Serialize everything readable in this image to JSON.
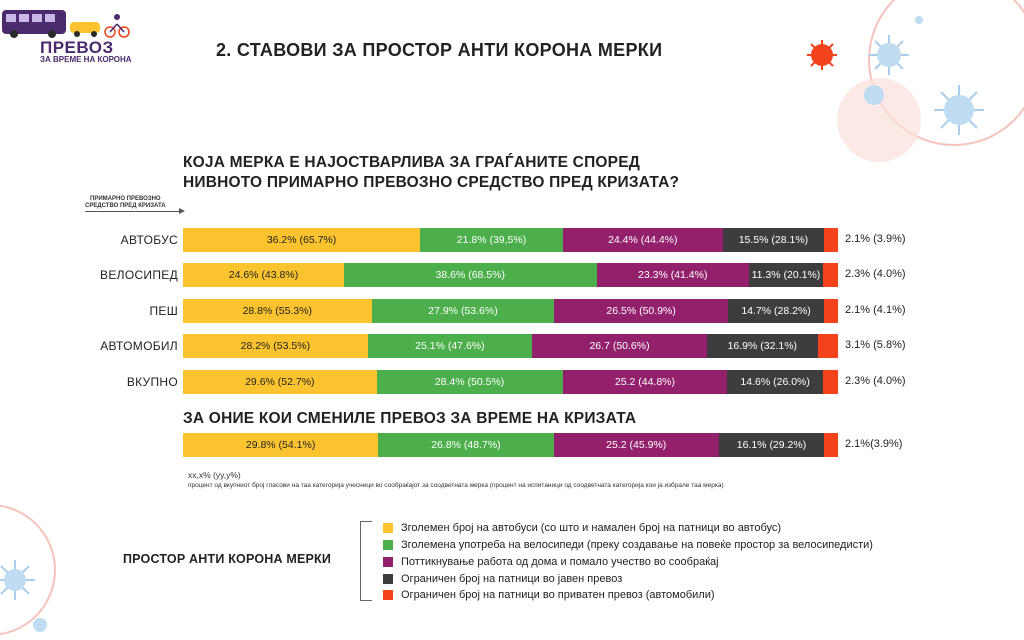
{
  "logo": {
    "title": "ПРЕВОЗ",
    "subtitle": "ЗА ВРЕМЕ НА КОРОНА"
  },
  "header": {
    "title": "2. СТАВОВИ ЗА ПРОСТОР АНТИ КОРОНА МЕРКИ"
  },
  "question": {
    "line1": "КОЈА МЕРКА Е НАЈОСТВАРЛИВА ЗА ГРАЃАНИТЕ СПОРЕД",
    "line2": "НИВНОТО ПРИМАРНО ПРЕВОЗНО СРЕДСТВО ПРЕД КРИЗАТА?"
  },
  "axis_heading": {
    "line1": "ПРИМАРНО ПРЕВОЗНО",
    "line2": "СРЕДСТВО ПРЕД КРИЗАТА"
  },
  "subtitle": "ЗА ОНИЕ КОИ СМЕНИЛЕ ПРЕВОЗ ЗА ВРЕМЕ НА КРИЗАТА",
  "note": {
    "format": "xx,x% (yy,y%)",
    "description": "процент од вкупниот број гласови на таа категорија учесници во сообраќајот за соодветната мерка  (процент на испитаници од соодветната категорија кои ја избрале таа мерка)"
  },
  "colors": [
    "#fbc42f",
    "#4caf4b",
    "#93206b",
    "#3e3c3f",
    "#f2431d"
  ],
  "chart_data": {
    "type": "bar",
    "orientation": "horizontal",
    "stacked": true,
    "series_names": [
      "Зголемен број на автобуси (со што и намален број на патници во автобус)",
      "Зголемена употреба на велосипеди (преку создавање на повеќе простор за велосипедисти)",
      "Поттикнување работа од дома и помало учество во сообраќај",
      "Ограничен број на патници во јавен превоз",
      "Ограничен број на патници во приватен превоз (автомобили)"
    ],
    "rows": [
      {
        "category": "АВТОБУС",
        "values": [
          36.2,
          21.8,
          24.4,
          15.5,
          2.1
        ],
        "labels": [
          "36.2% (65.7%)",
          "21.8% (39,5%)",
          "24.4% (44.4%)",
          "15.5% (28.1%)",
          "2.1% (3.9%)"
        ]
      },
      {
        "category": "ВЕЛОСИПЕД",
        "values": [
          24.6,
          38.6,
          23.3,
          11.3,
          2.3
        ],
        "labels": [
          "24.6% (43.8%)",
          "38.6% (68.5%)",
          "23.3% (41.4%)",
          "11.3% (20.1%)",
          "2.3% (4.0%)"
        ]
      },
      {
        "category": "ПЕШ",
        "values": [
          28.8,
          27.9,
          26.5,
          14.7,
          2.1
        ],
        "labels": [
          "28.8% (55.3%)",
          "27.9% (53.6%)",
          "26.5% (50.9%)",
          "14.7% (28.2%)",
          "2.1% (4.1%)"
        ]
      },
      {
        "category": "АВТОМОБИЛ",
        "values": [
          28.2,
          25.1,
          26.7,
          16.9,
          3.1
        ],
        "labels": [
          "28.2% (53.5%)",
          "25.1% (47.6%)",
          "26.7 (50.6%)",
          "16.9% (32.1%)",
          "3.1% (5.8%)"
        ]
      },
      {
        "category": "ВКУПНО",
        "values": [
          29.6,
          28.4,
          25.2,
          14.6,
          2.3
        ],
        "labels": [
          "29.6% (52.7%)",
          "28.4% (50.5%)",
          "25.2 (44.8%)",
          "14.6% (26.0%)",
          "2.3% (4.0%)"
        ]
      }
    ],
    "changed_row": {
      "category": "",
      "values": [
        29.8,
        26.8,
        25.2,
        16.1,
        2.1
      ],
      "labels": [
        "29.8% (54.1%)",
        "26.8% (48.7%)",
        "25.2 (45.9%)",
        "16.1% (29.2%)",
        "2.1%(3.9%)"
      ]
    },
    "legend_placement": "bottom"
  },
  "legend": {
    "title": "ПРОСТОР АНТИ КОРОНА МЕРКИ",
    "items": [
      "Зголемен број на автобуси (со што и намален број на патници во автобус)",
      "Зголемена употреба на велосипеди (преку создавање на повеќе простор за велосипедисти)",
      "Поттикнување работа од дома и помало учество во сообраќај",
      "Ограничен број на патници во јавен превоз",
      "Ограничен број на патници во приватен превоз (автомобили)"
    ]
  },
  "icons": {
    "logo": "bus-icon",
    "deco": "virus-icon"
  }
}
